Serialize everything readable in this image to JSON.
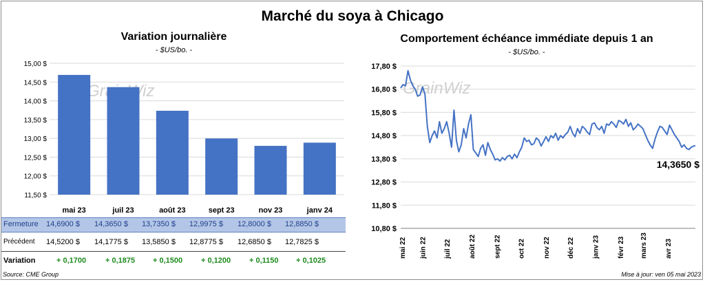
{
  "header": {
    "title": "Marché du soya à Chicago"
  },
  "left_panel": {
    "title": "Variation  journalière",
    "subtitle": "- $US/bo. -"
  },
  "right_panel": {
    "title": "Comportement  échéance immédiate depuis 1 an",
    "subtitle": "- $US/bo. -"
  },
  "watermark": "GrainWiz",
  "table": {
    "close_label": "Fermeture",
    "prev_label": "Précédent",
    "var_label": "Variation",
    "close_values": [
      "14,6900  $",
      "14,3650  $",
      "13,7350  $",
      "12,9975  $",
      "12,8000  $",
      "12,8850  $"
    ],
    "prev_values": [
      "14,5200  $",
      "14,1775  $",
      "13,5850  $",
      "12,8775  $",
      "12,6850  $",
      "12,7825  $"
    ],
    "var_values": [
      "+ 0,1700",
      "+ 0,1875",
      "+ 0,1500",
      "+ 0,1200",
      "+ 0,1150",
      "+ 0,1025"
    ]
  },
  "footer": {
    "source": "Source: CME Group",
    "updated": "Mise à jour: ven 05 mai 2023"
  },
  "chart_data": [
    {
      "type": "bar",
      "title": "Variation  journalière",
      "subtitle": "- $US/bo. -",
      "categories": [
        "mai 23",
        "juil 23",
        "août 23",
        "sept 23",
        "nov 23",
        "janv 24"
      ],
      "values": [
        14.69,
        14.365,
        13.735,
        12.9975,
        12.8,
        12.885
      ],
      "ylim": [
        11.5,
        15.0
      ],
      "yticks": [
        "15,00 $",
        "14,50 $",
        "14,00 $",
        "13,50 $",
        "13,00 $",
        "12,50 $",
        "12,00 $",
        "11,50 $"
      ],
      "grid": true,
      "color": "#4472c4"
    },
    {
      "type": "line",
      "title": "Comportement  échéance immédiate depuis 1 an",
      "subtitle": "- $US/bo. -",
      "ylim": [
        10.8,
        17.8
      ],
      "yticks": [
        "17,80 $",
        "16,80 $",
        "15,80 $",
        "14,80 $",
        "13,80 $",
        "12,80 $",
        "11,80 $",
        "10,80 $"
      ],
      "xticks": [
        "mai 22",
        "juin 22",
        "juil 22",
        "août 22",
        "sept 22",
        "oct 22",
        "nov 22",
        "déc 22",
        "janv 23",
        "févr 23",
        "mars 23",
        "avr 23"
      ],
      "last_value_label": "14,3650 $",
      "grid": true,
      "color": "#4472c4",
      "x": [
        "2022-05-05",
        "2022-05-08",
        "2022-05-11",
        "2022-05-14",
        "2022-05-17",
        "2022-05-20",
        "2022-05-23",
        "2022-05-26",
        "2022-05-29",
        "2022-06-01",
        "2022-06-04",
        "2022-06-07",
        "2022-06-10",
        "2022-06-13",
        "2022-06-16",
        "2022-06-19",
        "2022-06-22",
        "2022-06-25",
        "2022-06-28",
        "2022-07-01",
        "2022-07-04",
        "2022-07-07",
        "2022-07-10",
        "2022-07-13",
        "2022-07-16",
        "2022-07-19",
        "2022-07-22",
        "2022-07-25",
        "2022-07-28",
        "2022-07-31",
        "2022-08-03",
        "2022-08-06",
        "2022-08-09",
        "2022-08-12",
        "2022-08-15",
        "2022-08-18",
        "2022-08-21",
        "2022-08-24",
        "2022-08-27",
        "2022-08-30",
        "2022-09-02",
        "2022-09-05",
        "2022-09-08",
        "2022-09-11",
        "2022-09-14",
        "2022-09-17",
        "2022-09-20",
        "2022-09-23",
        "2022-09-26",
        "2022-09-29",
        "2022-10-02",
        "2022-10-05",
        "2022-10-08",
        "2022-10-11",
        "2022-10-14",
        "2022-10-17",
        "2022-10-20",
        "2022-10-23",
        "2022-10-26",
        "2022-10-29",
        "2022-11-01",
        "2022-11-04",
        "2022-11-07",
        "2022-11-10",
        "2022-11-13",
        "2022-11-16",
        "2022-11-19",
        "2022-11-22",
        "2022-11-25",
        "2022-11-28",
        "2022-12-01",
        "2022-12-04",
        "2022-12-07",
        "2022-12-10",
        "2022-12-13",
        "2022-12-16",
        "2022-12-19",
        "2022-12-22",
        "2022-12-25",
        "2022-12-28",
        "2022-12-31",
        "2023-01-03",
        "2023-01-06",
        "2023-01-09",
        "2023-01-12",
        "2023-01-15",
        "2023-01-18",
        "2023-01-21",
        "2023-01-24",
        "2023-01-27",
        "2023-01-30",
        "2023-02-02",
        "2023-02-05",
        "2023-02-08",
        "2023-02-11",
        "2023-02-14",
        "2023-02-17",
        "2023-02-20",
        "2023-02-23",
        "2023-02-26",
        "2023-03-01",
        "2023-03-04",
        "2023-03-07",
        "2023-03-10",
        "2023-03-13",
        "2023-03-16",
        "2023-03-19",
        "2023-03-22",
        "2023-03-25",
        "2023-03-28",
        "2023-03-31",
        "2023-04-03",
        "2023-04-06",
        "2023-04-09",
        "2023-04-12",
        "2023-04-15",
        "2023-04-18",
        "2023-04-21",
        "2023-04-24",
        "2023-04-27",
        "2023-04-30",
        "2023-05-03",
        "2023-05-05"
      ],
      "y": [
        16.85,
        17.0,
        16.95,
        17.6,
        17.2,
        16.95,
        16.8,
        16.5,
        16.55,
        16.9,
        16.6,
        15.2,
        14.5,
        14.8,
        15.0,
        14.7,
        15.4,
        14.9,
        15.1,
        15.4,
        14.9,
        14.3,
        15.9,
        14.6,
        14.1,
        14.4,
        15.1,
        14.7,
        15.3,
        15.7,
        14.2,
        14.05,
        13.9,
        14.25,
        14.4,
        13.95,
        14.5,
        14.2,
        14.0,
        13.75,
        13.8,
        13.7,
        13.85,
        13.75,
        13.9,
        13.95,
        13.8,
        14.0,
        13.85,
        14.1,
        14.3,
        14.7,
        14.55,
        14.6,
        14.4,
        14.45,
        14.7,
        14.6,
        14.35,
        14.55,
        14.75,
        14.55,
        14.8,
        14.7,
        14.9,
        14.6,
        14.8,
        14.7,
        14.85,
        14.95,
        15.2,
        14.9,
        14.75,
        15.1,
        14.9,
        15.2,
        15.1,
        14.95,
        14.85,
        15.3,
        15.35,
        15.15,
        15.05,
        15.2,
        14.9,
        15.3,
        15.25,
        15.4,
        15.3,
        15.15,
        15.45,
        15.4,
        15.3,
        15.5,
        15.2,
        15.35,
        15.05,
        15.15,
        15.3,
        15.2,
        15.1,
        14.85,
        14.6,
        14.4,
        14.25,
        14.65,
        14.95,
        15.2,
        15.15,
        15.0,
        14.85,
        15.25,
        15.05,
        14.85,
        14.7,
        14.55,
        14.3,
        14.4,
        14.25,
        14.2,
        14.3,
        14.35,
        14.365
      ]
    }
  ]
}
